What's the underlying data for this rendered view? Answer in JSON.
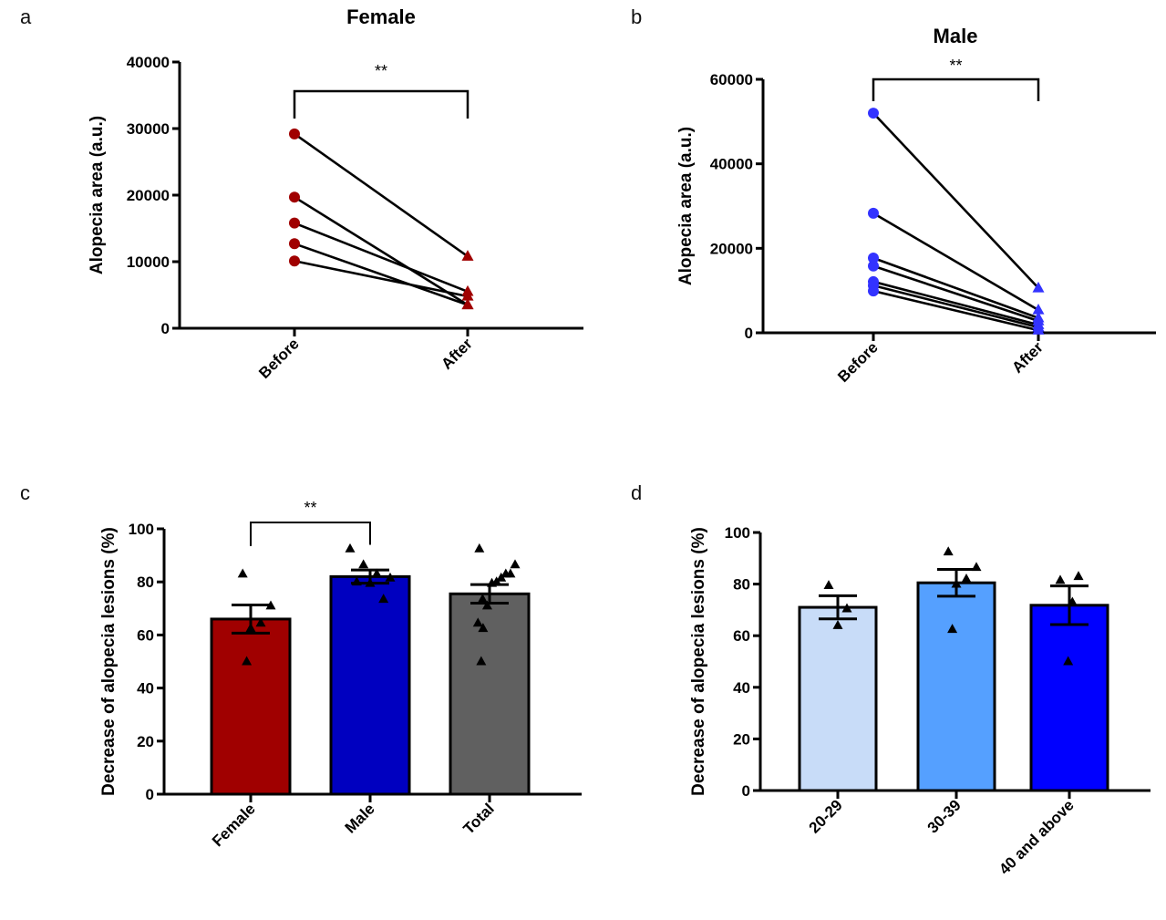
{
  "chart_data": [
    {
      "panel": "a",
      "type": "line",
      "subtype": "paired before-after",
      "title": "Female",
      "xlabel": "",
      "ylabel": "Alopecia area (a.u.)",
      "categories": [
        "Before",
        "After"
      ],
      "ylim": [
        0,
        40000
      ],
      "yticks": [
        0,
        10000,
        20000,
        30000,
        40000
      ],
      "ytick_labels": [
        "0",
        "10000",
        "20000",
        "30000",
        "40000"
      ],
      "marker_color": "#a00000",
      "line_color": "#000000",
      "markers": {
        "Before": "circle",
        "After": "triangle"
      },
      "pairs": [
        {
          "before": 29200,
          "after": 10800
        },
        {
          "before": 19700,
          "after": 3500
        },
        {
          "before": 15800,
          "after": 5500
        },
        {
          "before": 12700,
          "after": 3500
        },
        {
          "before": 10100,
          "after": 4800
        }
      ],
      "significance": {
        "from": "Before",
        "to": "After",
        "label": "**"
      },
      "grid": false
    },
    {
      "panel": "b",
      "type": "line",
      "subtype": "paired before-after",
      "title": "Male",
      "xlabel": "",
      "ylabel": "Alopecia area (a.u.)",
      "categories": [
        "Before",
        "After"
      ],
      "ylim": [
        0,
        60000
      ],
      "yticks": [
        0,
        20000,
        40000,
        60000
      ],
      "ytick_labels": [
        "0",
        "20000",
        "40000",
        "60000"
      ],
      "marker_color": "#3333ff",
      "line_color": "#000000",
      "markers": {
        "Before": "circle",
        "After": "triangle"
      },
      "pairs": [
        {
          "before": 52000,
          "after": 10600
        },
        {
          "before": 28300,
          "after": 5400
        },
        {
          "before": 17700,
          "after": 3500
        },
        {
          "before": 15800,
          "after": 2800
        },
        {
          "before": 12100,
          "after": 1900
        },
        {
          "before": 11200,
          "after": 1300
        },
        {
          "before": 9900,
          "after": 600
        }
      ],
      "significance": {
        "from": "Before",
        "to": "After",
        "label": "**"
      },
      "grid": false
    },
    {
      "panel": "c",
      "type": "bar",
      "subtype": "bar with SEM and scatter",
      "title": "",
      "xlabel": "",
      "ylabel": "Decrease of alopecia lesions (%)",
      "categories": [
        "Female",
        "Male",
        "Total"
      ],
      "values": [
        66,
        82,
        75.5
      ],
      "sem": [
        5.3,
        2.5,
        3.5
      ],
      "colors": [
        "#a00000",
        "#0000c0",
        "#606060"
      ],
      "ylim": [
        0,
        100
      ],
      "yticks": [
        0,
        20,
        40,
        60,
        80,
        100
      ],
      "ytick_labels": [
        "0",
        "20",
        "40",
        "60",
        "80",
        "100"
      ],
      "points": [
        [
          83,
          71,
          64.5,
          62.5,
          50
        ],
        [
          92.5,
          86.5,
          83,
          81.5,
          80,
          79.5,
          73.5
        ],
        [
          92.5,
          86.5,
          83,
          83,
          81.5,
          80,
          79.5,
          71,
          73.5,
          64.5,
          62.5,
          50
        ]
      ],
      "point_marker": "triangle",
      "significance": {
        "from": "Female",
        "to": "Male",
        "label": "**"
      },
      "grid": false
    },
    {
      "panel": "d",
      "type": "bar",
      "subtype": "bar with SEM and scatter",
      "title": "",
      "xlabel": "",
      "ylabel": "Decrease of alopecia lesions (%)",
      "categories": [
        "20-29",
        "30-39",
        "40 and above"
      ],
      "values": [
        71,
        80.5,
        71.8
      ],
      "sem": [
        4.5,
        5.2,
        7.5
      ],
      "colors": [
        "#c8dcf8",
        "#55a0ff",
        "#0000ff"
      ],
      "ylim": [
        0,
        100
      ],
      "yticks": [
        0,
        20,
        40,
        60,
        80,
        100
      ],
      "ytick_labels": [
        "0",
        "20",
        "40",
        "60",
        "80",
        "100"
      ],
      "points": [
        [
          79.5,
          70.5,
          64
        ],
        [
          92.5,
          86.5,
          82,
          80,
          62.5
        ],
        [
          81.5,
          83,
          73,
          50
        ]
      ],
      "point_marker": "triangle",
      "grid": false
    }
  ],
  "panel_letters": [
    "a",
    "b",
    "c",
    "d"
  ]
}
